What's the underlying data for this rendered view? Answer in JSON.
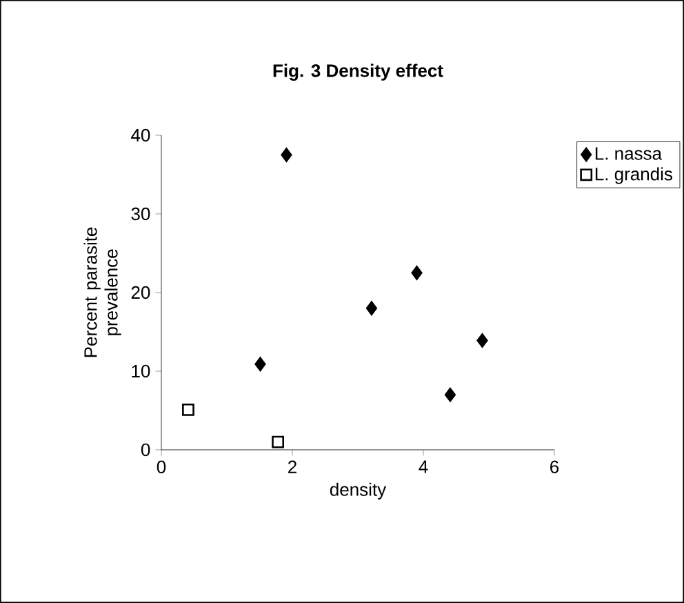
{
  "chart_data": {
    "type": "scatter",
    "title": "Fig. 3 Density effect",
    "xlabel": "density",
    "ylabel": "Percent parasite prevalence",
    "xlim": [
      0,
      6
    ],
    "xticks": [
      0,
      2,
      4,
      6
    ],
    "ylim": [
      0,
      40
    ],
    "yticks": [
      0,
      10,
      20,
      30,
      40
    ],
    "legend": "top right",
    "series": [
      {
        "name": "L. nassa",
        "color": "#000000",
        "marker": "diamond",
        "x": [
          1.91,
          1.51,
          3.21,
          3.9,
          4.41,
          4.9
        ],
        "values": [
          37.5,
          10.9,
          18.0,
          22.5,
          7.0,
          13.9
        ]
      },
      {
        "name": "L. grandis",
        "color": "#000000",
        "marker": "square",
        "x": [
          0.41,
          1.78
        ],
        "values": [
          5.1,
          1.0
        ]
      }
    ]
  }
}
